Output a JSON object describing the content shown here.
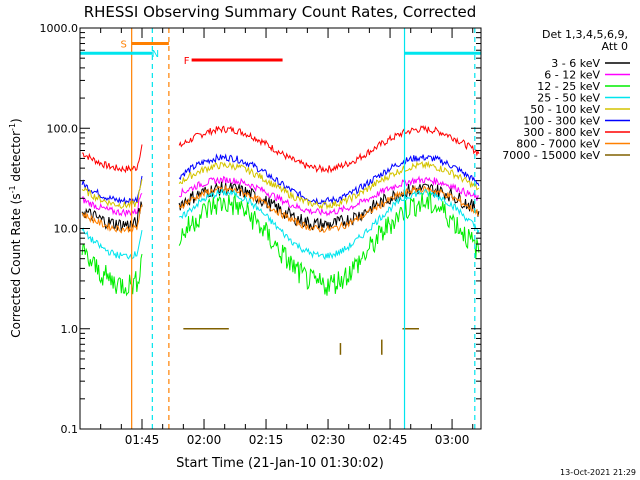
{
  "chart_data": {
    "type": "line",
    "title": "RHESSI Observing Summary Count Rates, Corrected",
    "xlabel": "Start Time (21-Jan-10 01:30:02)",
    "ylabel_main": "Corrected Count Rate (s",
    "ylabel_sup1": "-1",
    "ylabel_mid": " detector",
    "ylabel_sup2": "-1",
    "ylabel_end": ")",
    "y_scale": "log",
    "ylim": [
      0.1,
      1000.0
    ],
    "xlim_minutes": [
      0,
      97
    ],
    "y_ticks": [
      {
        "value": 0.1,
        "label": "0.1"
      },
      {
        "value": 1.0,
        "label": "1.0"
      },
      {
        "value": 10.0,
        "label": "10.0"
      },
      {
        "value": 100.0,
        "label": "100.0"
      },
      {
        "value": 1000.0,
        "label": "1000.0"
      }
    ],
    "x_ticks": [
      {
        "minute": 15,
        "label": "01:45"
      },
      {
        "minute": 30,
        "label": "02:00"
      },
      {
        "minute": 45,
        "label": "02:15"
      },
      {
        "minute": 60,
        "label": "02:30"
      },
      {
        "minute": 75,
        "label": "02:45"
      },
      {
        "minute": 90,
        "label": "03:00"
      }
    ],
    "legend": {
      "header_line1": "Det 1,3,4,5,6,9,",
      "header_line2": "Att 0",
      "position": "right"
    },
    "series": [
      {
        "name": "3 - 6 keV",
        "color": "#000000",
        "base": 16.5,
        "amp": 0.2
      },
      {
        "name": "6 - 12 keV",
        "color": "#ff00ff",
        "base": 21.0,
        "amp": 0.18
      },
      {
        "name": "12 - 25 keV",
        "color": "#00ee00",
        "base": 7.0,
        "amp": 0.45
      },
      {
        "name": "25 - 50 keV",
        "color": "#00e5ee",
        "base": 11.0,
        "amp": 0.35
      },
      {
        "name": "50 - 100 keV",
        "color": "#d4c400",
        "base": 27.0,
        "amp": 0.22
      },
      {
        "name": "100 - 300 keV",
        "color": "#0000ff",
        "base": 31.0,
        "amp": 0.24
      },
      {
        "name": "300 - 800 keV",
        "color": "#ff0000",
        "base": 62.0,
        "amp": 0.22
      },
      {
        "name": "800 - 7000 keV",
        "color": "#ff8000",
        "base": 15.5,
        "amp": 0.22
      },
      {
        "name": "7000 - 15000 keV",
        "color": "#806000",
        "base": null,
        "amp": 0
      }
    ],
    "annotations": {
      "saa_label": "S",
      "night_label": "N",
      "flare_label": "F",
      "saa_start_minute": 12.5,
      "saa_end_minute": 21.5,
      "saa_level": 700,
      "night_start_minute": 17.5,
      "night_end_minute": 78.5,
      "day_level": 560,
      "flare_start_minute": 27,
      "flare_end_minute": 49,
      "flare_level": 480,
      "solid_lines": [
        {
          "minute": 12.5,
          "color": "#ff8000"
        },
        {
          "minute": 78.5,
          "color": "#00e5ee"
        }
      ],
      "dashed_lines": [
        {
          "minute": 17.5,
          "color": "#00e5ee"
        },
        {
          "minute": 21.5,
          "color": "#ff8000"
        },
        {
          "minute": 95.5,
          "color": "#00e5ee"
        }
      ],
      "gap_minutes": [
        15,
        24
      ]
    },
    "timestamp": "13-Oct-2021 21:29"
  }
}
